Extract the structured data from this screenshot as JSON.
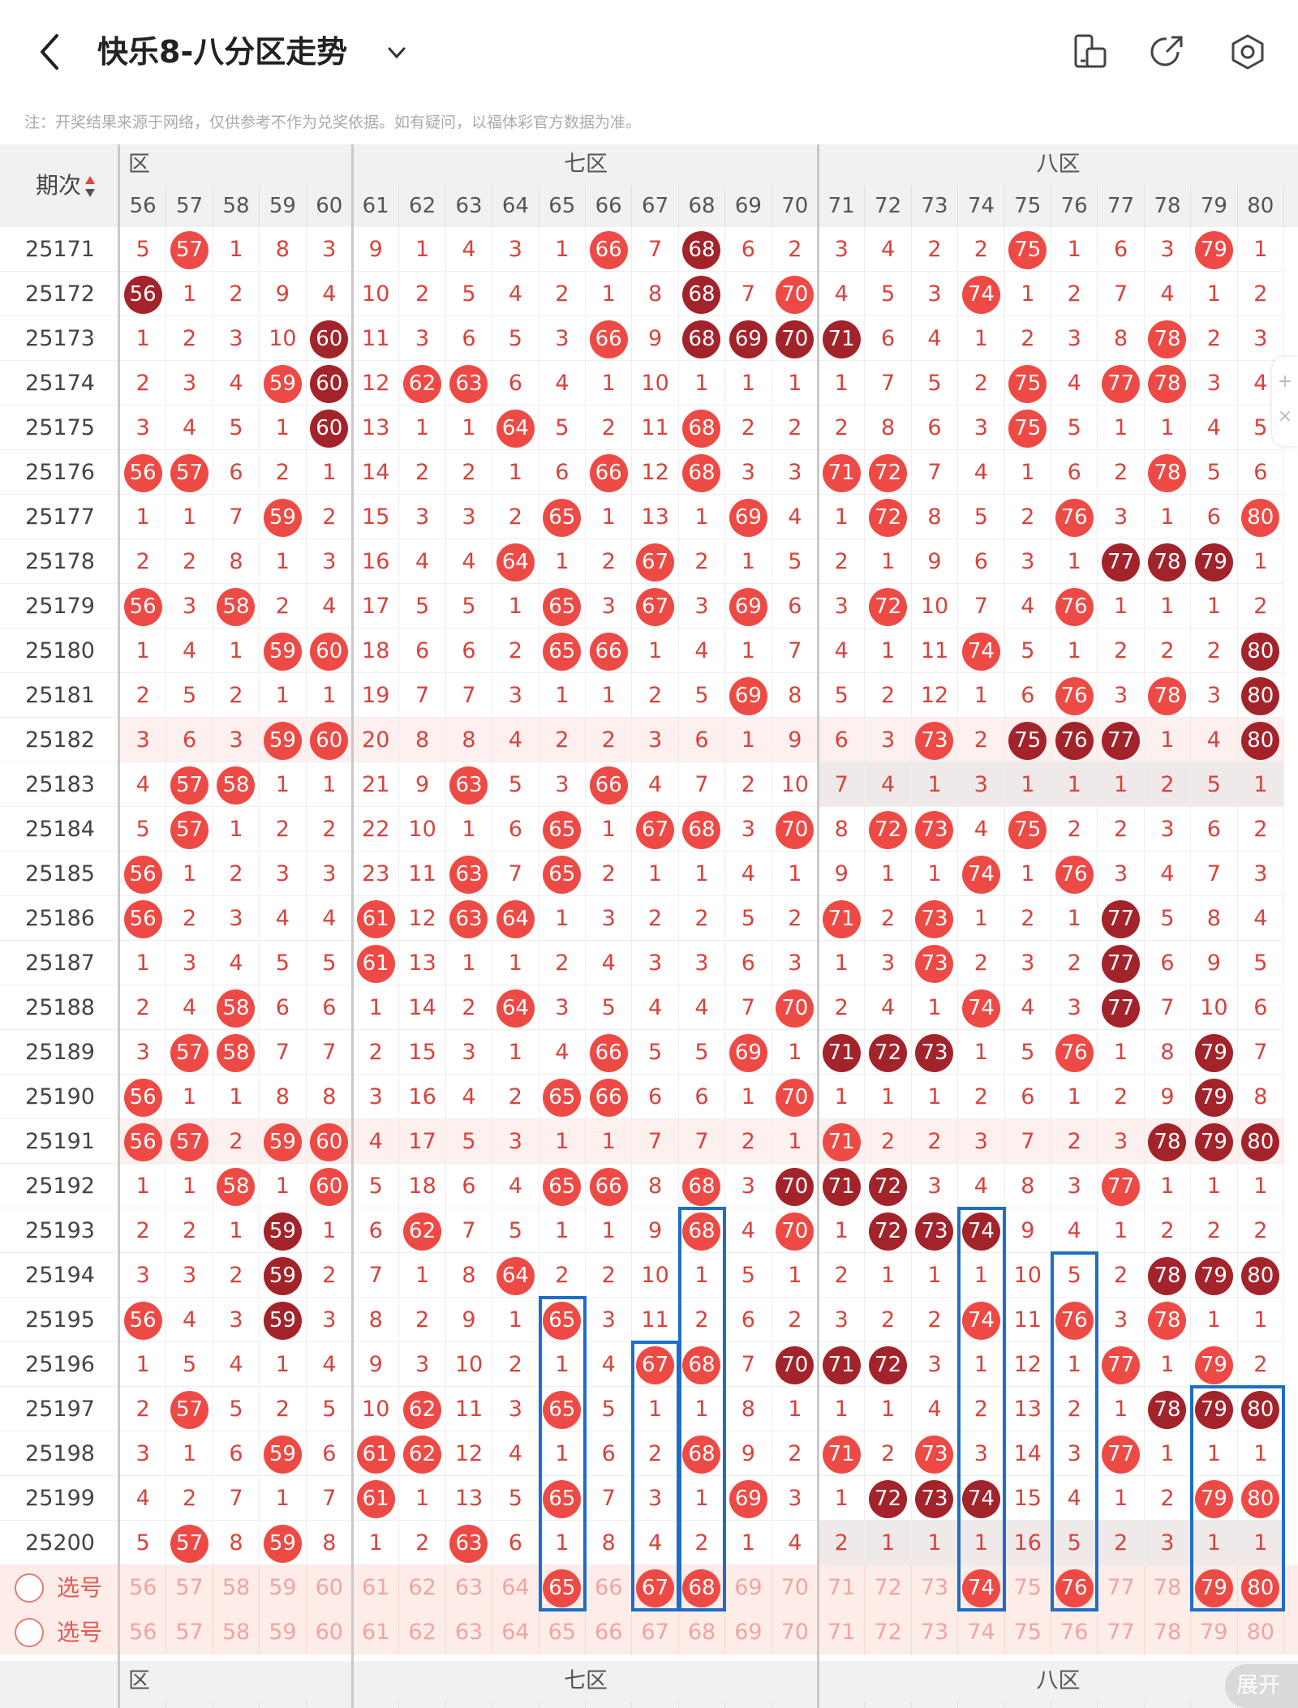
{
  "header": {
    "title": "快乐8-八分区走势",
    "note": "注：开奖结果来源于网络，仅供参考不作为兑奖依据。如有疑问，以福体彩官方数据为准。"
  },
  "table": {
    "period_header": "期次",
    "zones": [
      {
        "label": "六区",
        "visible_label": "区"
      },
      {
        "label": "七区"
      },
      {
        "label": "八区"
      }
    ],
    "columns": [
      "56",
      "57",
      "58",
      "59",
      "60",
      "61",
      "62",
      "63",
      "64",
      "65",
      "66",
      "67",
      "68",
      "69",
      "70",
      "71",
      "72",
      "73",
      "74",
      "75",
      "76",
      "77",
      "78",
      "79",
      "80"
    ],
    "rows": [
      {
        "period": "25171",
        "cells": [
          "5",
          "57",
          "1",
          "8",
          "3",
          "9",
          "1",
          "4",
          "3",
          "1",
          "66",
          "7",
          "68",
          "6",
          "2",
          "3",
          "4",
          "2",
          "2",
          "75",
          "1",
          "6",
          "3",
          "79",
          "1"
        ],
        "dark": [
          "68"
        ]
      },
      {
        "period": "25172",
        "cells": [
          "56",
          "1",
          "2",
          "9",
          "4",
          "10",
          "2",
          "5",
          "4",
          "2",
          "1",
          "8",
          "68",
          "7",
          "70",
          "4",
          "5",
          "3",
          "74",
          "1",
          "2",
          "7",
          "4",
          "1",
          "2"
        ],
        "dark": [
          "56",
          "68"
        ]
      },
      {
        "period": "25173",
        "cells": [
          "1",
          "2",
          "3",
          "10",
          "60",
          "11",
          "3",
          "6",
          "5",
          "3",
          "66",
          "9",
          "68",
          "69",
          "70",
          "71",
          "6",
          "4",
          "1",
          "2",
          "3",
          "8",
          "78",
          "2",
          "3"
        ],
        "dark": [
          "60",
          "68",
          "69",
          "70",
          "71"
        ]
      },
      {
        "period": "25174",
        "cells": [
          "2",
          "3",
          "4",
          "59",
          "60",
          "12",
          "62",
          "63",
          "6",
          "4",
          "1",
          "10",
          "1",
          "1",
          "1",
          "1",
          "7",
          "5",
          "2",
          "75",
          "4",
          "77",
          "78",
          "3",
          "4"
        ],
        "dark": [
          "60"
        ]
      },
      {
        "period": "25175",
        "cells": [
          "3",
          "4",
          "5",
          "1",
          "60",
          "13",
          "1",
          "1",
          "64",
          "5",
          "2",
          "11",
          "68",
          "2",
          "2",
          "2",
          "8",
          "6",
          "3",
          "75",
          "5",
          "1",
          "1",
          "4",
          "5"
        ],
        "dark": [
          "60"
        ]
      },
      {
        "period": "25176",
        "cells": [
          "56",
          "57",
          "6",
          "2",
          "1",
          "14",
          "2",
          "2",
          "1",
          "6",
          "66",
          "12",
          "68",
          "3",
          "3",
          "71",
          "72",
          "7",
          "4",
          "1",
          "6",
          "2",
          "78",
          "5",
          "6"
        ],
        "dark": []
      },
      {
        "period": "25177",
        "cells": [
          "1",
          "1",
          "7",
          "59",
          "2",
          "15",
          "3",
          "3",
          "2",
          "65",
          "1",
          "13",
          "1",
          "69",
          "4",
          "1",
          "72",
          "8",
          "5",
          "2",
          "76",
          "3",
          "1",
          "6",
          "80"
        ],
        "dark": []
      },
      {
        "period": "25178",
        "cells": [
          "2",
          "2",
          "8",
          "1",
          "3",
          "16",
          "4",
          "4",
          "64",
          "1",
          "2",
          "67",
          "2",
          "1",
          "5",
          "2",
          "1",
          "9",
          "6",
          "3",
          "1",
          "77",
          "78",
          "79",
          "1"
        ],
        "dark": [
          "77",
          "78",
          "79"
        ]
      },
      {
        "period": "25179",
        "cells": [
          "56",
          "3",
          "58",
          "2",
          "4",
          "17",
          "5",
          "5",
          "1",
          "65",
          "3",
          "67",
          "3",
          "69",
          "6",
          "3",
          "72",
          "10",
          "7",
          "4",
          "76",
          "1",
          "1",
          "1",
          "2"
        ],
        "dark": []
      },
      {
        "period": "25180",
        "cells": [
          "1",
          "4",
          "1",
          "59",
          "60",
          "18",
          "6",
          "6",
          "2",
          "65",
          "66",
          "1",
          "4",
          "1",
          "7",
          "4",
          "1",
          "11",
          "74",
          "5",
          "1",
          "2",
          "2",
          "2",
          "80"
        ],
        "dark": [
          "80"
        ]
      },
      {
        "period": "25181",
        "cells": [
          "2",
          "5",
          "2",
          "1",
          "1",
          "19",
          "7",
          "7",
          "3",
          "1",
          "1",
          "2",
          "5",
          "69",
          "8",
          "5",
          "2",
          "12",
          "1",
          "6",
          "76",
          "3",
          "78",
          "3",
          "80"
        ],
        "dark": [
          "80"
        ]
      },
      {
        "period": "25182",
        "cells": [
          "3",
          "6",
          "3",
          "59",
          "60",
          "20",
          "8",
          "8",
          "4",
          "2",
          "2",
          "3",
          "6",
          "1",
          "9",
          "6",
          "3",
          "73",
          "2",
          "75",
          "76",
          "77",
          "1",
          "4",
          "80"
        ],
        "dark": [
          "75",
          "76",
          "77",
          "80"
        ],
        "tint": true
      },
      {
        "period": "25183",
        "cells": [
          "4",
          "57",
          "58",
          "1",
          "1",
          "21",
          "9",
          "63",
          "5",
          "3",
          "66",
          "4",
          "7",
          "2",
          "10",
          "7",
          "4",
          "1",
          "3",
          "1",
          "1",
          "1",
          "2",
          "5",
          "1"
        ],
        "dark": [],
        "gray8": true
      },
      {
        "period": "25184",
        "cells": [
          "5",
          "57",
          "1",
          "2",
          "2",
          "22",
          "10",
          "1",
          "6",
          "65",
          "1",
          "67",
          "68",
          "3",
          "70",
          "8",
          "72",
          "73",
          "4",
          "75",
          "2",
          "2",
          "3",
          "6",
          "2"
        ],
        "dark": []
      },
      {
        "period": "25185",
        "cells": [
          "56",
          "1",
          "2",
          "3",
          "3",
          "23",
          "11",
          "63",
          "7",
          "65",
          "2",
          "1",
          "1",
          "4",
          "1",
          "9",
          "1",
          "1",
          "74",
          "1",
          "76",
          "3",
          "4",
          "7",
          "3"
        ],
        "dark": []
      },
      {
        "period": "25186",
        "cells": [
          "56",
          "2",
          "3",
          "4",
          "4",
          "61",
          "12",
          "63",
          "64",
          "1",
          "3",
          "2",
          "2",
          "5",
          "2",
          "71",
          "2",
          "73",
          "1",
          "2",
          "1",
          "77",
          "5",
          "8",
          "4"
        ],
        "dark": [
          "77"
        ]
      },
      {
        "period": "25187",
        "cells": [
          "1",
          "3",
          "4",
          "5",
          "5",
          "61",
          "13",
          "1",
          "1",
          "2",
          "4",
          "3",
          "3",
          "6",
          "3",
          "1",
          "3",
          "73",
          "2",
          "3",
          "2",
          "77",
          "6",
          "9",
          "5"
        ],
        "dark": [
          "77"
        ]
      },
      {
        "period": "25188",
        "cells": [
          "2",
          "4",
          "58",
          "6",
          "6",
          "1",
          "14",
          "2",
          "64",
          "3",
          "5",
          "4",
          "4",
          "7",
          "70",
          "2",
          "4",
          "1",
          "74",
          "4",
          "3",
          "77",
          "7",
          "10",
          "6"
        ],
        "dark": [
          "77"
        ]
      },
      {
        "period": "25189",
        "cells": [
          "3",
          "57",
          "58",
          "7",
          "7",
          "2",
          "15",
          "3",
          "1",
          "4",
          "66",
          "5",
          "5",
          "69",
          "1",
          "71",
          "72",
          "73",
          "1",
          "5",
          "76",
          "1",
          "8",
          "79",
          "7"
        ],
        "dark": [
          "71",
          "72",
          "73",
          "79"
        ]
      },
      {
        "period": "25190",
        "cells": [
          "56",
          "1",
          "1",
          "8",
          "8",
          "3",
          "16",
          "4",
          "2",
          "65",
          "66",
          "6",
          "6",
          "1",
          "70",
          "1",
          "1",
          "1",
          "2",
          "6",
          "1",
          "2",
          "9",
          "79",
          "8"
        ],
        "dark": [
          "79"
        ]
      },
      {
        "period": "25191",
        "cells": [
          "56",
          "57",
          "2",
          "59",
          "60",
          "4",
          "17",
          "5",
          "3",
          "1",
          "1",
          "7",
          "7",
          "2",
          "1",
          "71",
          "2",
          "2",
          "3",
          "7",
          "2",
          "3",
          "78",
          "79",
          "80"
        ],
        "dark": [
          "78",
          "79",
          "80"
        ],
        "tint": true
      },
      {
        "period": "25192",
        "cells": [
          "1",
          "1",
          "58",
          "1",
          "60",
          "5",
          "18",
          "6",
          "4",
          "65",
          "66",
          "8",
          "68",
          "3",
          "70",
          "71",
          "72",
          "3",
          "4",
          "8",
          "3",
          "77",
          "1",
          "1",
          "1"
        ],
        "dark": [
          "70",
          "71",
          "72"
        ]
      },
      {
        "period": "25193",
        "cells": [
          "2",
          "2",
          "1",
          "59",
          "1",
          "6",
          "62",
          "7",
          "5",
          "1",
          "1",
          "9",
          "68",
          "4",
          "70",
          "1",
          "72",
          "73",
          "74",
          "9",
          "4",
          "1",
          "2",
          "2",
          "2"
        ],
        "dark": [
          "59",
          "72",
          "73",
          "74"
        ]
      },
      {
        "period": "25194",
        "cells": [
          "3",
          "3",
          "2",
          "59",
          "2",
          "7",
          "1",
          "8",
          "64",
          "2",
          "2",
          "10",
          "1",
          "5",
          "1",
          "2",
          "1",
          "1",
          "1",
          "10",
          "5",
          "2",
          "78",
          "79",
          "80"
        ],
        "dark": [
          "59",
          "78",
          "79",
          "80"
        ]
      },
      {
        "period": "25195",
        "cells": [
          "56",
          "4",
          "3",
          "59",
          "3",
          "8",
          "2",
          "9",
          "1",
          "65",
          "3",
          "11",
          "2",
          "6",
          "2",
          "3",
          "2",
          "2",
          "74",
          "11",
          "76",
          "3",
          "78",
          "1",
          "1"
        ],
        "dark": [
          "59"
        ]
      },
      {
        "period": "25196",
        "cells": [
          "1",
          "5",
          "4",
          "1",
          "4",
          "9",
          "3",
          "10",
          "2",
          "1",
          "4",
          "67",
          "68",
          "7",
          "70",
          "71",
          "72",
          "3",
          "1",
          "12",
          "1",
          "77",
          "1",
          "79",
          "2"
        ],
        "dark": [
          "70",
          "71",
          "72"
        ]
      },
      {
        "period": "25197",
        "cells": [
          "2",
          "57",
          "5",
          "2",
          "5",
          "10",
          "62",
          "11",
          "3",
          "65",
          "5",
          "1",
          "1",
          "8",
          "1",
          "1",
          "1",
          "4",
          "2",
          "13",
          "2",
          "1",
          "78",
          "79",
          "80"
        ],
        "dark": [
          "78",
          "79",
          "80"
        ]
      },
      {
        "period": "25198",
        "cells": [
          "3",
          "1",
          "6",
          "59",
          "6",
          "61",
          "62",
          "12",
          "4",
          "1",
          "6",
          "2",
          "68",
          "9",
          "2",
          "71",
          "2",
          "73",
          "3",
          "14",
          "3",
          "77",
          "1",
          "1",
          "1"
        ],
        "dark": []
      },
      {
        "period": "25199",
        "cells": [
          "4",
          "2",
          "7",
          "1",
          "7",
          "61",
          "1",
          "13",
          "5",
          "65",
          "7",
          "3",
          "1",
          "69",
          "3",
          "1",
          "72",
          "73",
          "74",
          "15",
          "4",
          "1",
          "2",
          "79",
          "80"
        ],
        "dark": [
          "72",
          "73",
          "74"
        ]
      },
      {
        "period": "25200",
        "cells": [
          "5",
          "57",
          "8",
          "59",
          "8",
          "1",
          "2",
          "63",
          "6",
          "1",
          "8",
          "4",
          "2",
          "1",
          "4",
          "2",
          "1",
          "1",
          "1",
          "16",
          "5",
          "2",
          "3",
          "1",
          "1"
        ],
        "dark": [],
        "gray8": true
      }
    ],
    "select_rows": [
      {
        "label": "选号",
        "selected": [
          "65",
          "67",
          "68",
          "74",
          "76",
          "79",
          "80"
        ]
      },
      {
        "label": "选号",
        "selected": []
      }
    ],
    "bottom_header": {
      "period": "-"
    }
  },
  "buttons": {
    "expand": "展开"
  },
  "colors": {
    "hit": "#ee4a45",
    "hit_dark": "#a3232a",
    "box": "#1e6ec8"
  }
}
